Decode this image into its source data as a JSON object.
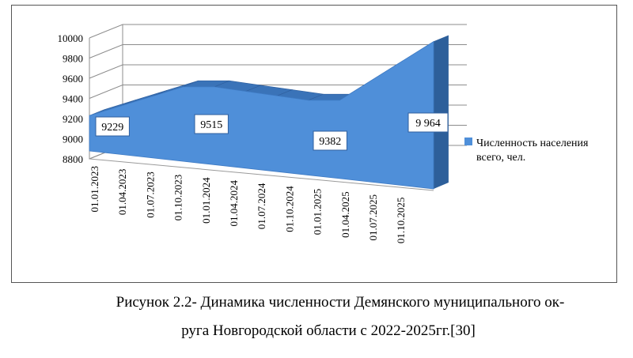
{
  "chart_data": {
    "type": "area",
    "dimension": "3d",
    "x": [
      "01.01.2023",
      "01.04.2023",
      "01.07.2023",
      "01.10.2023",
      "01.01.2024",
      "01.04.2024",
      "01.07.2024",
      "01.10.2024",
      "01.01.2025",
      "01.04.2025",
      "01.07.2025",
      "01.10.2025"
    ],
    "series": [
      {
        "name": "Численность населения всего, чел.",
        "values": [
          9229,
          9325,
          9420,
          9515,
          9515,
          9470,
          9426,
          9382,
          9382,
          9576,
          9770,
          9964
        ],
        "color": "#4f8fd9"
      }
    ],
    "data_labels": [
      {
        "x": "01.01.2023",
        "text": "9229"
      },
      {
        "x": "01.01.2024",
        "text": "9515"
      },
      {
        "x": "01.01.2025",
        "text": "9382"
      },
      {
        "x": "01.10.2025",
        "text": "9 964"
      }
    ],
    "y_ticks": [
      "8800",
      "9000",
      "9200",
      "9400",
      "9600",
      "9800",
      "10000"
    ],
    "ylim": [
      8800,
      10000
    ],
    "grid": true,
    "legend": {
      "position": "right",
      "label_lines": [
        "Численность населения",
        "всего, чел."
      ]
    }
  },
  "caption": {
    "line1": "Рисунок 2.2- Динамика численности Демянского муниципального ок-",
    "line2": "руга Новгородской области с 2022-2025гг.[30]"
  }
}
